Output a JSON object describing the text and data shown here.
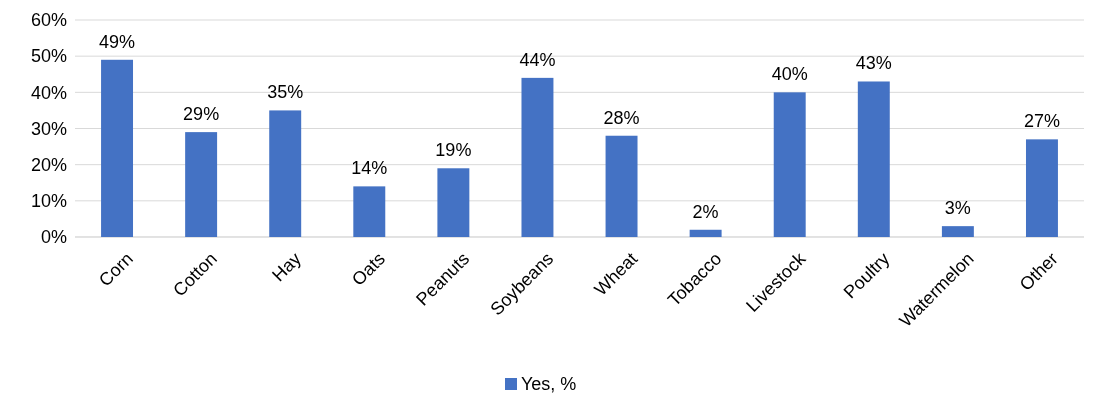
{
  "chart_data": {
    "type": "bar",
    "categories": [
      "Corn",
      "Cotton",
      "Hay",
      "Oats",
      "Peanuts",
      "Soybeans",
      "Wheat",
      "Tobacco",
      "Livestock",
      "Poultry",
      "Watermelon",
      "Other"
    ],
    "series": [
      {
        "name": "Yes, %",
        "color": "#4472c4",
        "values": [
          49,
          29,
          35,
          14,
          19,
          44,
          28,
          2,
          40,
          43,
          3,
          27
        ]
      }
    ],
    "value_labels": [
      "49%",
      "29%",
      "35%",
      "14%",
      "19%",
      "44%",
      "28%",
      "2%",
      "40%",
      "43%",
      "3%",
      "27%"
    ],
    "ylim": [
      0,
      60
    ],
    "yticks": [
      {
        "value": 0,
        "label": "0%"
      },
      {
        "value": 10,
        "label": "10%"
      },
      {
        "value": 20,
        "label": "20%"
      },
      {
        "value": 30,
        "label": "30%"
      },
      {
        "value": 40,
        "label": "40%"
      },
      {
        "value": 50,
        "label": "50%"
      },
      {
        "value": 60,
        "label": "60%"
      }
    ],
    "grid": "y",
    "legend": "bottom"
  }
}
